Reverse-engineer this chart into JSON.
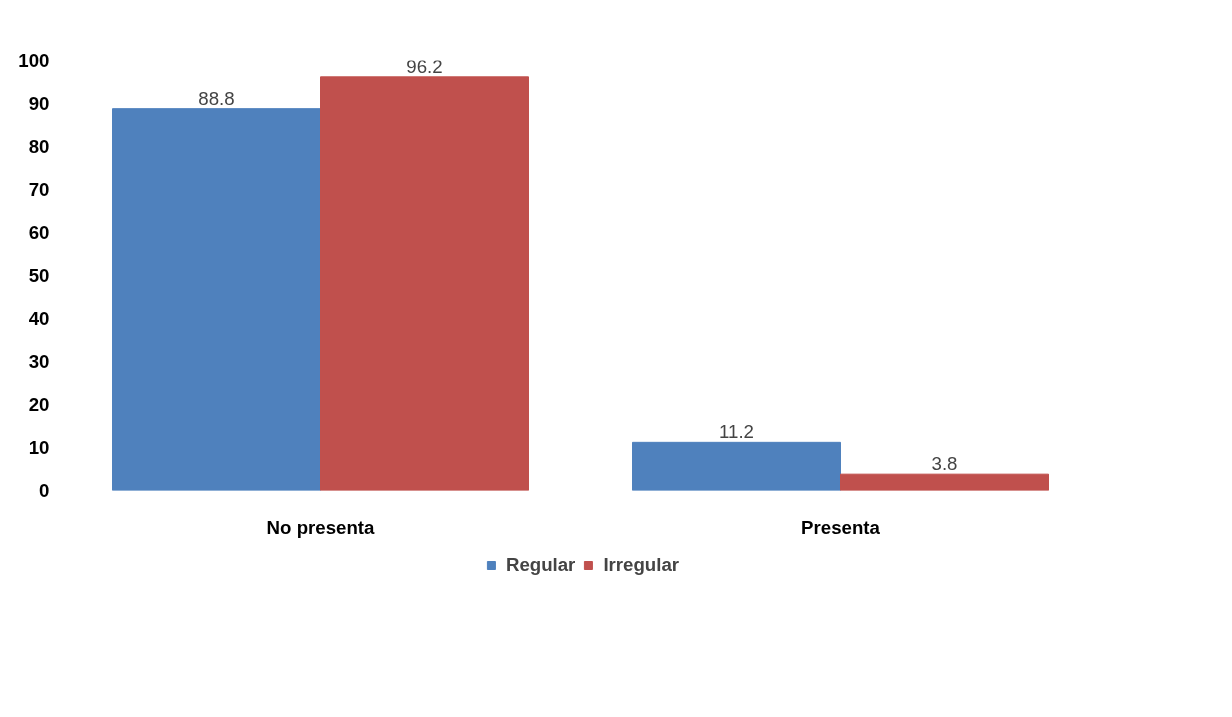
{
  "chart_data": {
    "type": "bar",
    "categories": [
      "No presenta",
      "Presenta"
    ],
    "series": [
      {
        "name": "Regular",
        "color": "#4f81bd",
        "values": [
          88.8,
          11.2
        ]
      },
      {
        "name": "Irregular",
        "color": "#c0504d",
        "values": [
          96.2,
          3.8
        ]
      }
    ],
    "ylim": [
      0,
      100
    ],
    "yticks": [
      0,
      10,
      20,
      30,
      40,
      50,
      60,
      70,
      80,
      90,
      100
    ],
    "data_labels": true,
    "grid": false,
    "legend": "bottom"
  }
}
